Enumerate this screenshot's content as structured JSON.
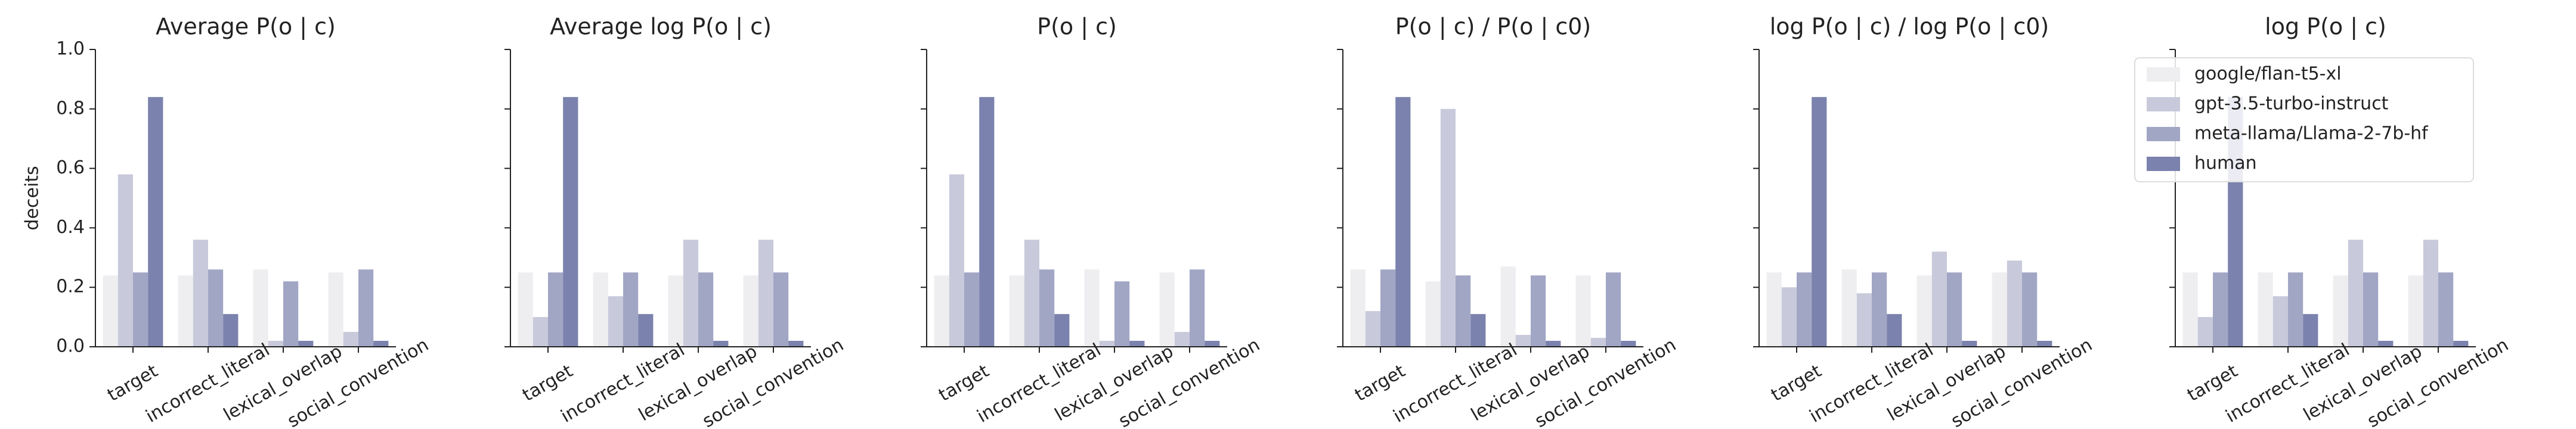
{
  "chart_data": [
    {
      "type": "bar",
      "title": "Average P(o | c)",
      "ylabel": "deceits",
      "categories": [
        "target",
        "incorrect_literal",
        "lexical_overlap",
        "social_convention"
      ],
      "ylim": [
        0,
        1.0
      ],
      "yticks": [
        {
          "value": 0,
          "label": "0.0"
        },
        0.2,
        0.4,
        0.6,
        0.8,
        {
          "value": 1,
          "label": "1.0"
        }
      ],
      "series": [
        {
          "name": "google/flan-t5-xl",
          "color": "#eeeef1",
          "values": [
            0.24,
            0.24,
            0.26,
            0.25
          ]
        },
        {
          "name": "gpt-3.5-turbo-instruct",
          "color": "#c8cadb",
          "values": [
            0.58,
            0.36,
            0.02,
            0.05
          ]
        },
        {
          "name": "meta-llama/Llama-2-7b-hf",
          "color": "#a2a6c5",
          "values": [
            0.25,
            0.26,
            0.22,
            0.26
          ]
        },
        {
          "name": "human",
          "color": "#7a82ad",
          "values": [
            0.84,
            0.11,
            0.02,
            0.02
          ]
        }
      ]
    },
    {
      "type": "bar",
      "title": "Average log P(o | c)",
      "categories": [
        "target",
        "incorrect_literal",
        "lexical_overlap",
        "social_convention"
      ],
      "ylim": [
        0,
        1.0
      ],
      "series": [
        {
          "color": "#eeeef1",
          "values": [
            0.25,
            0.25,
            0.24,
            0.24
          ]
        },
        {
          "color": "#c8cadb",
          "values": [
            0.1,
            0.17,
            0.36,
            0.36
          ]
        },
        {
          "color": "#a2a6c5",
          "values": [
            0.25,
            0.25,
            0.25,
            0.25
          ]
        },
        {
          "color": "#7a82ad",
          "values": [
            0.84,
            0.11,
            0.02,
            0.02
          ]
        }
      ]
    },
    {
      "type": "bar",
      "title": "P(o | c)",
      "categories": [
        "target",
        "incorrect_literal",
        "lexical_overlap",
        "social_convention"
      ],
      "ylim": [
        0,
        1.0
      ],
      "series": [
        {
          "color": "#eeeef1",
          "values": [
            0.24,
            0.24,
            0.26,
            0.25
          ]
        },
        {
          "color": "#c8cadb",
          "values": [
            0.58,
            0.36,
            0.02,
            0.05
          ]
        },
        {
          "color": "#a2a6c5",
          "values": [
            0.25,
            0.26,
            0.22,
            0.26
          ]
        },
        {
          "color": "#7a82ad",
          "values": [
            0.84,
            0.11,
            0.02,
            0.02
          ]
        }
      ]
    },
    {
      "type": "bar",
      "title": "P(o | c) / P(o | c0)",
      "categories": [
        "target",
        "incorrect_literal",
        "lexical_overlap",
        "social_convention"
      ],
      "ylim": [
        0,
        1.0
      ],
      "series": [
        {
          "color": "#eeeef1",
          "values": [
            0.26,
            0.22,
            0.27,
            0.24
          ]
        },
        {
          "color": "#c8cadb",
          "values": [
            0.12,
            0.8,
            0.04,
            0.03
          ]
        },
        {
          "color": "#a2a6c5",
          "values": [
            0.26,
            0.24,
            0.24,
            0.25
          ]
        },
        {
          "color": "#7a82ad",
          "values": [
            0.84,
            0.11,
            0.02,
            0.02
          ]
        }
      ]
    },
    {
      "type": "bar",
      "title": "log P(o | c) / log P(o | c0)",
      "categories": [
        "target",
        "incorrect_literal",
        "lexical_overlap",
        "social_convention"
      ],
      "ylim": [
        0,
        1.0
      ],
      "series": [
        {
          "color": "#eeeef1",
          "values": [
            0.25,
            0.26,
            0.24,
            0.25
          ]
        },
        {
          "color": "#c8cadb",
          "values": [
            0.2,
            0.18,
            0.32,
            0.29
          ]
        },
        {
          "color": "#a2a6c5",
          "values": [
            0.25,
            0.25,
            0.25,
            0.25
          ]
        },
        {
          "color": "#7a82ad",
          "values": [
            0.84,
            0.11,
            0.02,
            0.02
          ]
        }
      ]
    },
    {
      "type": "bar",
      "title": "log P(o | c)",
      "categories": [
        "target",
        "incorrect_literal",
        "lexical_overlap",
        "social_convention"
      ],
      "ylim": [
        0,
        1.0
      ],
      "legend": "upper left",
      "series": [
        {
          "color": "#eeeef1",
          "values": [
            0.25,
            0.25,
            0.24,
            0.24
          ]
        },
        {
          "color": "#c8cadb",
          "values": [
            0.1,
            0.17,
            0.36,
            0.36
          ]
        },
        {
          "color": "#a2a6c5",
          "values": [
            0.25,
            0.25,
            0.25,
            0.25
          ]
        },
        {
          "color": "#7a82ad",
          "values": [
            0.84,
            0.11,
            0.02,
            0.02
          ]
        }
      ]
    }
  ]
}
